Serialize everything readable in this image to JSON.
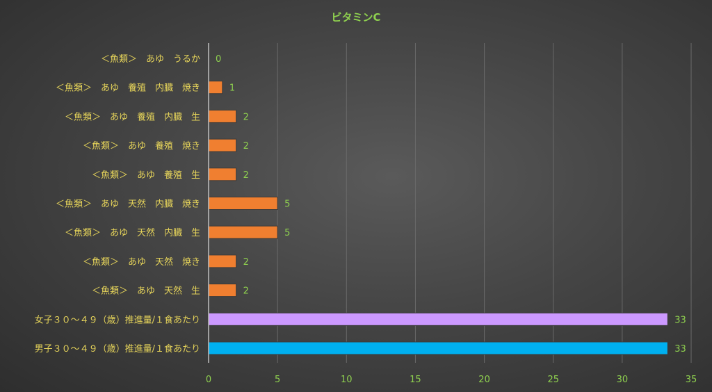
{
  "chart_data": {
    "type": "bar",
    "orientation": "horizontal",
    "title": "ビタミンC",
    "xlabel": "",
    "ylabel": "",
    "xlim": [
      0,
      35
    ],
    "x_ticks": [
      0,
      5,
      10,
      15,
      20,
      25,
      30,
      35
    ],
    "grid": "vertical",
    "categories": [
      "＜魚類＞　あゆ　うるか",
      "＜魚類＞　あゆ　養殖　内臓　焼き",
      "＜魚類＞　あゆ　養殖　内臓　生",
      "＜魚類＞　あゆ　養殖　焼き",
      "＜魚類＞　あゆ　養殖　生",
      "＜魚類＞　あゆ　天然　内臓　焼き",
      "＜魚類＞　あゆ　天然　内臓　生",
      "＜魚類＞　あゆ　天然　焼き",
      "＜魚類＞　あゆ　天然　生",
      "女子３０～４９（歳）推進量/１食あたり",
      "男子３０～４９（歳）推進量/１食あたり"
    ],
    "values": [
      0,
      1,
      2,
      2,
      2,
      5,
      5,
      2,
      2,
      33.3,
      33.3
    ],
    "data_labels": [
      "0",
      "1",
      "2",
      "2",
      "2",
      "5",
      "5",
      "2",
      "2",
      "33",
      "33"
    ],
    "bar_colors": [
      "#f07f30",
      "#f07f30",
      "#f07f30",
      "#f07f30",
      "#f07f30",
      "#f07f30",
      "#f07f30",
      "#f07f30",
      "#f07f30",
      "#cc99ff",
      "#00b0f0"
    ]
  },
  "colors": {
    "title": "#8fd14f",
    "category_label": "#e6d45a",
    "tick_label": "#8fd14f",
    "food_bar": "#f07f30",
    "female_bar": "#cc99ff",
    "male_bar": "#00b0f0"
  }
}
